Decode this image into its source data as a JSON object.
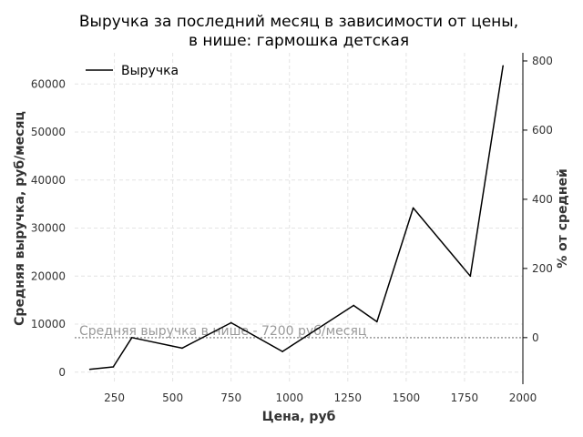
{
  "chart_data": {
    "type": "line",
    "title_line1": "Выручка за последний месяц в зависимости от цены,",
    "title_line2": "в нише: гармошка детская",
    "xlabel": "Цена, руб",
    "ylabel": "Средняя выручка, руб/месяц",
    "y2label": "% от средней",
    "xlim": [
      80,
      2000
    ],
    "ylim": [
      -2500,
      66500
    ],
    "y2lim": [
      -134.7,
      823.6
    ],
    "x_ticks": [
      250,
      500,
      750,
      1000,
      1250,
      1500,
      1750,
      2000
    ],
    "y_ticks": [
      0,
      10000,
      20000,
      30000,
      40000,
      50000,
      60000
    ],
    "y2_ticks": [
      0,
      200,
      400,
      600,
      800
    ],
    "grid": true,
    "legend_position": "top-left",
    "series": [
      {
        "name": "Выручка",
        "color": "#000000",
        "x": [
          145,
          245,
          325,
          540,
          750,
          970,
          1275,
          1375,
          1530,
          1775,
          1915
        ],
        "y": [
          600,
          1100,
          7200,
          5000,
          10300,
          4300,
          13900,
          10500,
          34200,
          20000,
          63800
        ]
      }
    ],
    "reference_line": {
      "value": 7200,
      "label": "Средняя выручка в нише - 7200 руб/месяц"
    }
  }
}
